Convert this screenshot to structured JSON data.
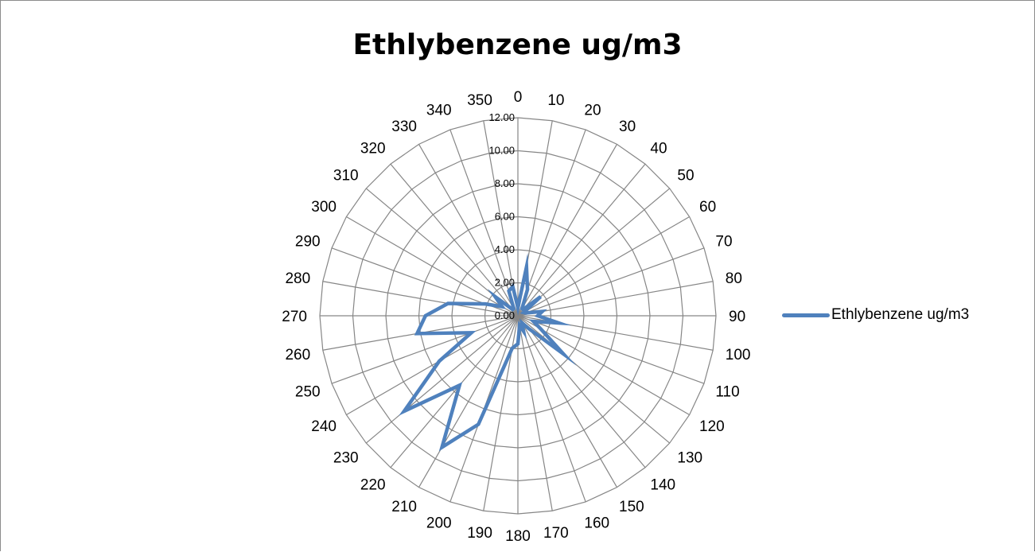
{
  "chart_data": {
    "type": "radar",
    "title": "Ethlybenzene ug/m3",
    "angle_labels": [
      "0",
      "10",
      "20",
      "30",
      "40",
      "50",
      "60",
      "70",
      "80",
      "90",
      "100",
      "110",
      "120",
      "130",
      "140",
      "150",
      "160",
      "170",
      "180",
      "190",
      "200",
      "210",
      "220",
      "230",
      "240",
      "250",
      "260",
      "270",
      "280",
      "290",
      "300",
      "310",
      "320",
      "330",
      "340",
      "350"
    ],
    "radial_ticks": [
      "0.00",
      "2.00",
      "4.00",
      "6.00",
      "8.00",
      "10.00",
      "12.00"
    ],
    "rlim": [
      0,
      12
    ],
    "grid": true,
    "legend_position": "right",
    "series": [
      {
        "name": "Ethlybenzene ug/m3",
        "color": "#4f81bd",
        "values": [
          0.5,
          3.0,
          1.7,
          0.5,
          0.5,
          1.8,
          0.4,
          0.5,
          1.5,
          1.2,
          2.5,
          1.0,
          1.6,
          3.6,
          1.0,
          0.5,
          1.0,
          0.6,
          1.7,
          2.0,
          7.0,
          9.2,
          5.5,
          9.0,
          5.5,
          3.0,
          6.2,
          5.6,
          4.3,
          2.1,
          1.1,
          1.8,
          0.5,
          0.5,
          1.6,
          1.8
        ]
      }
    ]
  },
  "legend": {
    "items": [
      {
        "label": "Ethlybenzene ug/m3",
        "color": "#4f81bd"
      }
    ]
  }
}
